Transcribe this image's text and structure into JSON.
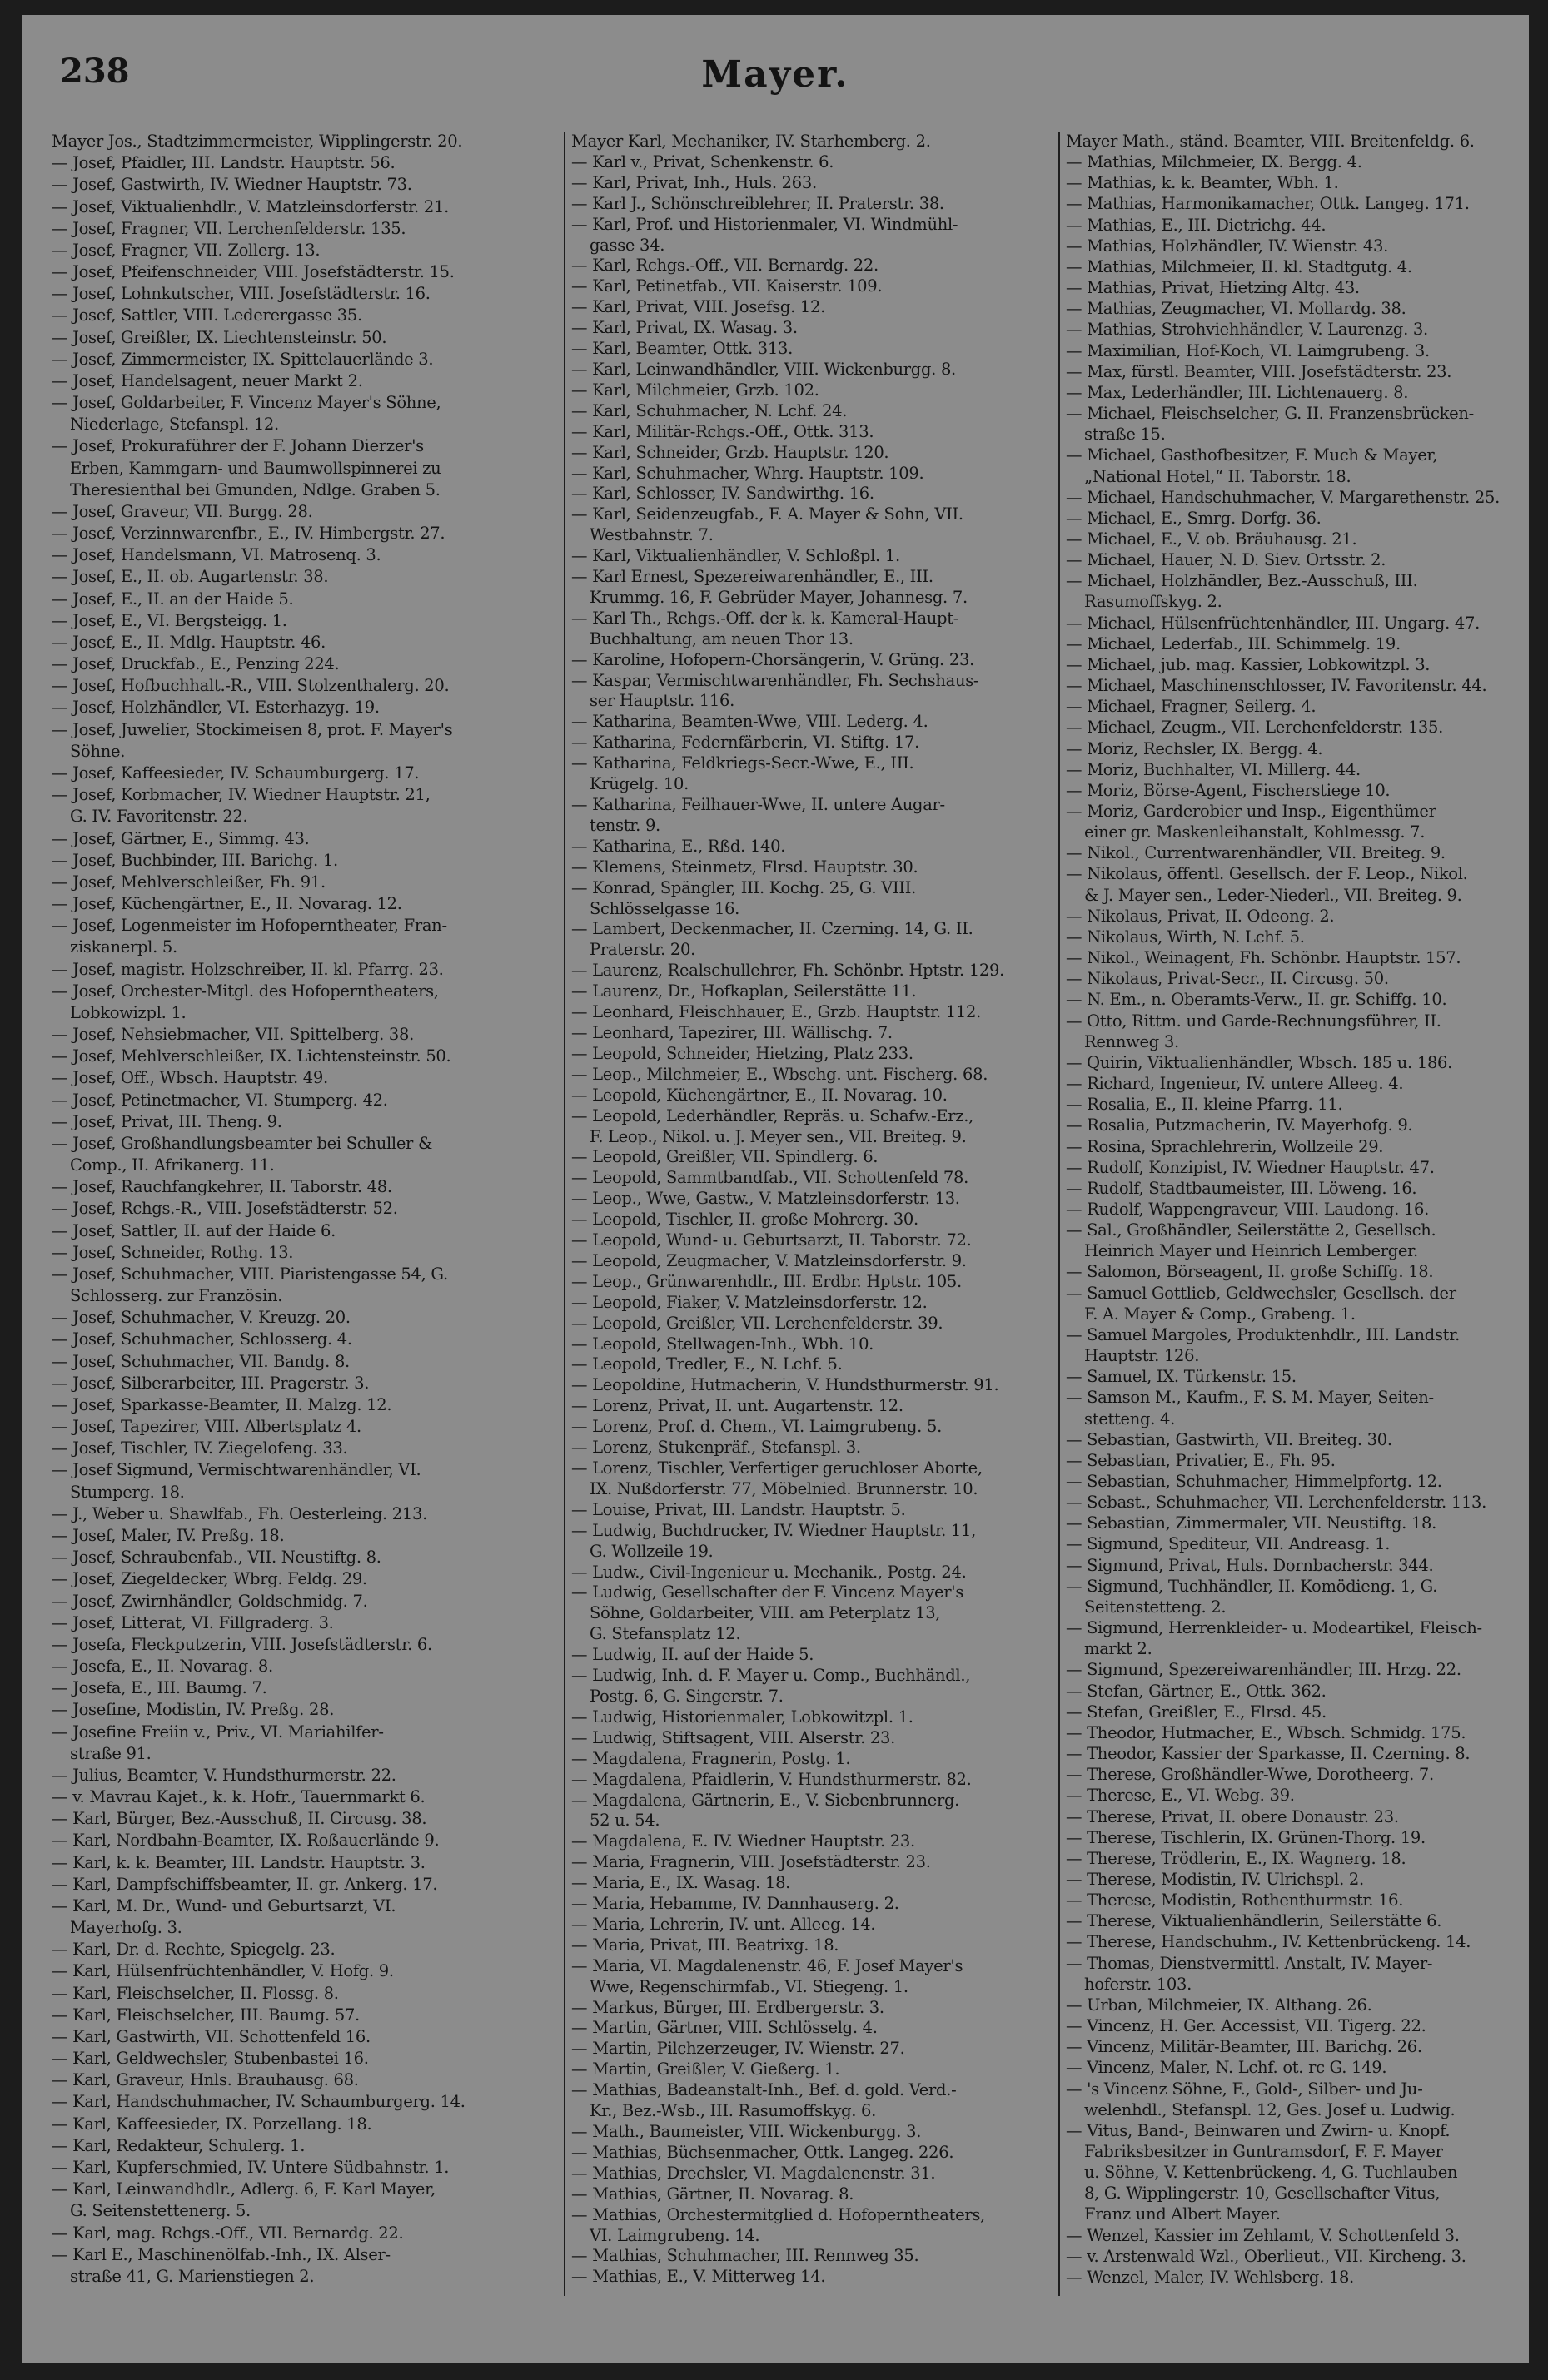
{
  "header": {
    "page_number": "238",
    "title": "Mayer."
  },
  "columns": [
    {
      "lines": [
        "Mayer Jos., Stadtzimmermeister, Wipplingerstr. 20.",
        "— Josef, Pfaidler, III. Landstr. Hauptstr. 56.",
        "— Josef, Gastwirth, IV. Wiedner Hauptstr. 73.",
        "— Josef, Viktualienhdlr., V. Matzleinsdorferstr. 21.",
        "— Josef, Fragner, VII. Lerchenfelderstr. 135.",
        "— Josef, Fragner, VII. Zollerg. 13.",
        "— Josef, Pfeifenschneider, VIII. Josefstädterstr. 15.",
        "— Josef, Lohnkutscher, VIII. Josefstädterstr. 16.",
        "— Josef, Sattler, VIII. Lederergasse 35.",
        "— Josef, Greißler, IX. Liechtensteinstr. 50.",
        "— Josef, Zimmermeister, IX. Spittelauerlände 3.",
        "— Josef, Handelsagent, neuer Markt 2.",
        "— Josef, Goldarbeiter, F. Vincenz Mayer's Söhne,",
        "Niederlage, Stefanspl. 12.",
        "— Josef, Prokuraführer der F. Johann Dierzer's",
        "Erben, Kammgarn- und Baumwollspinnerei zu",
        "Theresienthal bei Gmunden, Ndlge. Graben 5.",
        "— Josef, Graveur, VII. Burgg. 28.",
        "— Josef, Verzinnwarenfbr., E., IV. Himbergstr. 27.",
        "— Josef, Handelsmann, VI. Matrosenq. 3.",
        "— Josef, E., II. ob. Augartenstr. 38.",
        "— Josef, E., II. an der Haide 5.",
        "— Josef, E., VI. Bergsteigg. 1.",
        "— Josef, E., II. Mdlg. Hauptstr. 46.",
        "— Josef, Druckfab., E., Penzing 224.",
        "— Josef, Hofbuchhalt.-R., VIII. Stolzenthalerg. 20.",
        "— Josef, Holzhändler, VI. Esterhazyg. 19.",
        "— Josef, Juwelier, Stockimeisen 8, prot. F. Mayer's",
        "Söhne.",
        "— Josef, Kaffeesieder, IV. Schaumburgerg. 17.",
        "— Josef, Korbmacher, IV. Wiedner Hauptstr. 21,",
        "G. IV. Favoritenstr. 22.",
        "— Josef, Gärtner, E., Simmg. 43.",
        "— Josef, Buchbinder, III. Barichg. 1.",
        "— Josef, Mehlverschleißer, Fh. 91.",
        "— Josef, Küchengärtner, E., II. Novarag. 12.",
        "— Josef, Logenmeister im Hofoperntheater, Fran-",
        "ziskanerpl. 5.",
        "— Josef, magistr. Holzschreiber, II. kl. Pfarrg. 23.",
        "— Josef, Orchester-Mitgl. des Hofoperntheaters,",
        "Lobkowizpl. 1.",
        "— Josef, Nehsiebmacher, VII. Spittelberg. 38.",
        "— Josef, Mehlverschleißer, IX. Lichtensteinstr. 50.",
        "— Josef, Off., Wbsch. Hauptstr. 49.",
        "— Josef, Petinetmacher, VI. Stumperg. 42.",
        "— Josef, Privat, III. Theng. 9.",
        "— Josef, Großhandlungsbeamter bei Schuller &",
        "Comp., II. Afrikanerg. 11.",
        "— Josef, Rauchfangkehrer, II. Taborstr. 48.",
        "— Josef, Rchgs.-R., VIII. Josefstädterstr. 52.",
        "— Josef, Sattler, II. auf der Haide 6.",
        "— Josef, Schneider, Rothg. 13.",
        "— Josef, Schuhmacher, VIII. Piaristengasse 54, G.",
        "Schlosserg. zur Französin.",
        "— Josef, Schuhmacher, V. Kreuzg. 20.",
        "— Josef, Schuhmacher, Schlosserg. 4.",
        "— Josef, Schuhmacher, VII. Bandg. 8.",
        "— Josef, Silberarbeiter, III. Pragerstr. 3.",
        "— Josef, Sparkasse-Beamter, II. Malzg. 12.",
        "— Josef, Tapezirer, VIII. Albertsplatz 4.",
        "— Josef, Tischler, IV. Ziegelofeng. 33.",
        "— Josef Sigmund, Vermischtwarenhändler, VI.",
        "Stumperg. 18.",
        "— J., Weber u. Shawlfab., Fh. Oesterleing. 213.",
        "— Josef, Maler, IV. Preßg. 18.",
        "— Josef, Schraubenfab., VII. Neustiftg. 8.",
        "— Josef, Ziegeldecker, Wbrg. Feldg. 29.",
        "— Josef, Zwirnhändler, Goldschmidg. 7.",
        "— Josef, Litterat, VI. Fillgraderg. 3.",
        "— Josefa, Fleckputzerin, VIII. Josefstädterstr. 6.",
        "— Josefa, E., II. Novarag. 8.",
        "— Josefa, E., III. Baumg. 7.",
        "— Josefine, Modistin, IV. Preßg. 28.",
        "— Josefine Freiin v., Priv., VI. Mariahilfer-",
        "straße 91.",
        "— Julius, Beamter, V. Hundsthurmerstr. 22.",
        "— v. Mavrau Kajet., k. k. Hofr., Tauernmarkt 6.",
        "— Karl, Bürger, Bez.-Ausschuß, II. Circusg. 38.",
        "— Karl, Nordbahn-Beamter, IX. Roßauerlände 9.",
        "— Karl, k. k. Beamter, III. Landstr. Hauptstr. 3.",
        "— Karl, Dampfschiffsbeamter, II. gr. Ankerg. 17.",
        "— Karl, M. Dr., Wund- und Geburtsarzt, VI.",
        "Mayerhofg. 3.",
        "— Karl, Dr. d. Rechte, Spiegelg. 23.",
        "— Karl, Hülsenfrüchtenhändler, V. Hofg. 9.",
        "— Karl, Fleischselcher, II. Flossg. 8.",
        "— Karl, Fleischselcher, III. Baumg. 57.",
        "— Karl, Gastwirth, VII. Schottenfeld 16.",
        "— Karl, Geldwechsler, Stubenbastei 16.",
        "— Karl, Graveur, Hnls. Brauhausg. 68.",
        "— Karl, Handschuhmacher, IV. Schaumburgerg. 14.",
        "— Karl, Kaffeesieder, IX. Porzellang. 18.",
        "— Karl, Redakteur, Schulerg. 1.",
        "— Karl, Kupferschmied, IV. Untere Südbahnstr. 1.",
        "— Karl, Leinwandhdlr., Adlerg. 6, F. Karl Mayer,",
        "G. Seitenstettenerg. 5.",
        "— Karl, mag. Rchgs.-Off., VII. Bernardg. 22.",
        "— Karl E., Maschinenölfab.-Inh., IX. Alser-",
        "straße 41, G. Marienstiegen 2."
      ]
    },
    {
      "lines": [
        "Mayer Karl, Mechaniker, IV. Starhemberg. 2.",
        "— Karl v., Privat, Schenkenstr. 6.",
        "— Karl, Privat, Inh., Huls. 263.",
        "— Karl J., Schönschreiblehrer, II. Praterstr. 38.",
        "— Karl, Prof. und Historienmaler, VI. Windmühl-",
        "gasse 34.",
        "— Karl, Rchgs.-Off., VII. Bernardg. 22.",
        "— Karl, Petinetfab., VII. Kaiserstr. 109.",
        "— Karl, Privat, VIII. Josefsg. 12.",
        "— Karl, Privat, IX. Wasag. 3.",
        "— Karl, Beamter, Ottk. 313.",
        "— Karl, Leinwandhändler, VIII. Wickenburgg. 8.",
        "— Karl, Milchmeier, Grzb. 102.",
        "— Karl, Schuhmacher, N. Lchf. 24.",
        "— Karl, Militär-Rchgs.-Off., Ottk. 313.",
        "— Karl, Schneider, Grzb. Hauptstr. 120.",
        "— Karl, Schuhmacher, Whrg. Hauptstr. 109.",
        "— Karl, Schlosser, IV. Sandwirthg. 16.",
        "— Karl, Seidenzeugfab., F. A. Mayer & Sohn, VII.",
        "Westbahnstr. 7.",
        "— Karl, Viktualienhändler, V. Schloßpl. 1.",
        "— Karl Ernest, Spezereiwarenhändler, E., III.",
        "Krummg. 16, F. Gebrüder Mayer, Johannesg. 7.",
        "— Karl Th., Rchgs.-Off. der k. k. Kameral-Haupt-",
        "Buchhaltung, am neuen Thor 13.",
        "— Karoline, Hofopern-Chorsängerin, V. Grüng. 23.",
        "— Kaspar, Vermischtwarenhändler, Fh. Sechshaus-",
        "ser Hauptstr. 116.",
        "— Katharina, Beamten-Wwe, VIII. Lederg. 4.",
        "— Katharina, Federnfärberin, VI. Stiftg. 17.",
        "— Katharina, Feldkriegs-Secr.-Wwe, E., III.",
        "Krügelg. 10.",
        "— Katharina, Feilhauer-Wwe, II. untere Augar-",
        "tenstr. 9.",
        "— Katharina, E., Rßd. 140.",
        "— Klemens, Steinmetz, Flrsd. Hauptstr. 30.",
        "— Konrad, Spängler, III. Kochg. 25, G. VIII.",
        "Schlösselgasse 16.",
        "— Lambert, Deckenmacher, II. Czerning. 14, G. II.",
        "Praterstr. 20.",
        "— Laurenz, Realschullehrer, Fh. Schönbr. Hptstr. 129.",
        "— Laurenz, Dr., Hofkaplan, Seilerstätte 11.",
        "— Leonhard, Fleischhauer, E., Grzb. Hauptstr. 112.",
        "— Leonhard, Tapezirer, III. Wällischg. 7.",
        "— Leopold, Schneider, Hietzing, Platz 233.",
        "— Leop., Milchmeier, E., Wbschg. unt. Fischerg. 68.",
        "— Leopold, Küchengärtner, E., II. Novarag. 10.",
        "— Leopold, Lederhändler, Repräs. u. Schafw.-Erz.,",
        "F. Leop., Nikol. u. J. Meyer sen., VII. Breiteg. 9.",
        "— Leopold, Greißler, VII. Spindlerg. 6.",
        "— Leopold, Sammtbandfab., VII. Schottenfeld 78.",
        "— Leop., Wwe, Gastw., V. Matzleinsdorferstr. 13.",
        "— Leopold, Tischler, II. große Mohrerg. 30.",
        "— Leopold, Wund- u. Geburtsarzt, II. Taborstr. 72.",
        "— Leopold, Zeugmacher, V. Matzleinsdorferstr. 9.",
        "— Leop., Grünwarenhdlr., III. Erdbr. Hptstr. 105.",
        "— Leopold, Fiaker, V. Matzleinsdorferstr. 12.",
        "— Leopold, Greißler, VII. Lerchenfelderstr. 39.",
        "— Leopold, Stellwagen-Inh., Wbh. 10.",
        "— Leopold, Tredler, E., N. Lchf. 5.",
        "— Leopoldine, Hutmacherin, V. Hundsthurmerstr. 91.",
        "— Lorenz, Privat, II. unt. Augartenstr. 12.",
        "— Lorenz, Prof. d. Chem., VI. Laimgrubeng. 5.",
        "— Lorenz, Stukenpräf., Stefanspl. 3.",
        "— Lorenz, Tischler, Verfertiger geruchloser Aborte,",
        "IX. Nußdorferstr. 77, Möbelnied. Brunnerstr. 10.",
        "— Louise, Privat, III. Landstr. Hauptstr. 5.",
        "— Ludwig, Buchdrucker, IV. Wiedner Hauptstr. 11,",
        "G. Wollzeile 19.",
        "— Ludw., Civil-Ingenieur u. Mechanik., Postg. 24.",
        "— Ludwig, Gesellschafter der F. Vincenz Mayer's",
        "Söhne, Goldarbeiter, VIII. am Peterplatz 13,",
        "G. Stefansplatz 12.",
        "— Ludwig, II. auf der Haide 5.",
        "— Ludwig, Inh. d. F. Mayer u. Comp., Buchhändl.,",
        "Postg. 6, G. Singerstr. 7.",
        "— Ludwig, Historienmaler, Lobkowitzpl. 1.",
        "— Ludwig, Stiftsagent, VIII. Alserstr. 23.",
        "— Magdalena, Fragnerin, Postg. 1.",
        "— Magdalena, Pfaidlerin, V. Hundsthurmerstr. 82.",
        "— Magdalena, Gärtnerin, E., V. Siebenbrunnerg.",
        "52 u. 54.",
        "— Magdalena, E. IV. Wiedner Hauptstr. 23.",
        "— Maria, Fragnerin, VIII. Josefstädterstr. 23.",
        "— Maria, E., IX. Wasag. 18.",
        "— Maria, Hebamme, IV. Dannhauserg. 2.",
        "— Maria, Lehrerin, IV. unt. Alleeg. 14.",
        "— Maria, Privat, III. Beatrixg. 18.",
        "— Maria, VI. Magdalenenstr. 46, F. Josef Mayer's",
        "Wwe, Regenschirmfab., VI. Stiegeng. 1.",
        "— Markus, Bürger, III. Erdbergerstr. 3.",
        "— Martin, Gärtner, VIII. Schlösselg. 4.",
        "— Martin, Pilchzerzeuger, IV. Wienstr. 27.",
        "— Martin, Greißler, V. Gießerg. 1.",
        "— Mathias, Badeanstalt-Inh., Bef. d. gold. Verd.-",
        "Kr., Bez.-Wsb., III. Rasumoffskyg. 6.",
        "— Math., Baumeister, VIII. Wickenburgg. 3.",
        "— Mathias, Büchsenmacher, Ottk. Langeg. 226.",
        "— Mathias, Drechsler, VI. Magdalenenstr. 31.",
        "— Mathias, Gärtner, II. Novarag. 8.",
        "— Mathias, Orchestermitglied d. Hofoperntheaters,",
        "VI. Laimgrubeng. 14.",
        "— Mathias, Schuhmacher, III. Rennweg 35.",
        "— Mathias, E., V. Mitterweg 14."
      ]
    },
    {
      "lines": [
        "Mayer Math., ständ. Beamter, VIII. Breitenfeldg. 6.",
        "— Mathias, Milchmeier, IX. Bergg. 4.",
        "— Mathias, k. k. Beamter, Wbh. 1.",
        "— Mathias, Harmonikamacher, Ottk. Langeg. 171.",
        "— Mathias, E., III. Dietrichg. 44.",
        "— Mathias, Holzhändler, IV. Wienstr. 43.",
        "— Mathias, Milchmeier, II. kl. Stadtgutg. 4.",
        "— Mathias, Privat, Hietzing Altg. 43.",
        "— Mathias, Zeugmacher, VI. Mollardg. 38.",
        "— Mathias, Strohviehhändler, V. Laurenzg. 3.",
        "— Maximilian, Hof-Koch, VI. Laimgrubeng. 3.",
        "— Max, fürstl. Beamter, VIII. Josefstädterstr. 23.",
        "— Max, Lederhändler, III. Lichtenauerg. 8.",
        "— Michael, Fleischselcher, G. II. Franzensbrücken-",
        "straße 15.",
        "— Michael, Gasthofbesitzer, F. Much & Mayer,",
        "„National Hotel,“ II. Taborstr. 18.",
        "— Michael, Handschuhmacher, V. Margarethenstr. 25.",
        "— Michael, E., Smrg. Dorfg. 36.",
        "— Michael, E., V. ob. Bräuhausg. 21.",
        "— Michael, Hauer, N. D. Siev. Ortsstr. 2.",
        "— Michael, Holzhändler, Bez.-Ausschuß, III.",
        "Rasumoffskyg. 2.",
        "— Michael, Hülsenfrüchtenhändler, III. Ungarg. 47.",
        "— Michael, Lederfab., III. Schimmelg. 19.",
        "— Michael, jub. mag. Kassier, Lobkowitzpl. 3.",
        "— Michael, Maschinenschlosser, IV. Favoritenstr. 44.",
        "— Michael, Fragner, Seilerg. 4.",
        "— Michael, Zeugm., VII. Lerchenfelderstr. 135.",
        "— Moriz, Rechsler, IX. Bergg. 4.",
        "— Moriz, Buchhalter, VI. Millerg. 44.",
        "— Moriz, Börse-Agent, Fischerstiege 10.",
        "— Moriz, Garderobier und Insp., Eigenthümer",
        "einer gr. Maskenleihanstalt, Kohlmessg. 7.",
        "— Nikol., Currentwarenhändler, VII. Breiteg. 9.",
        "— Nikolaus, öffentl. Gesellsch. der F. Leop., Nikol.",
        "& J. Mayer sen., Leder-Niederl., VII. Breiteg. 9.",
        "— Nikolaus, Privat, II. Odeong. 2.",
        "— Nikolaus, Wirth, N. Lchf. 5.",
        "— Nikol., Weinagent, Fh. Schönbr. Hauptstr. 157.",
        "— Nikolaus, Privat-Secr., II. Circusg. 50.",
        "— N. Em., n. Oberamts-Verw., II. gr. Schiffg. 10.",
        "— Otto, Rittm. und Garde-Rechnungsführer, II.",
        "Rennweg 3.",
        "— Quirin, Viktualienhändler, Wbsch. 185 u. 186.",
        "— Richard, Ingenieur, IV. untere Alleeg. 4.",
        "— Rosalia, E., II. kleine Pfarrg. 11.",
        "— Rosalia, Putzmacherin, IV. Mayerhofg. 9.",
        "— Rosina, Sprachlehrerin, Wollzeile 29.",
        "— Rudolf, Konzipist, IV. Wiedner Hauptstr. 47.",
        "— Rudolf, Stadtbaumeister, III. Löweng. 16.",
        "— Rudolf, Wappengraveur, VIII. Laudong. 16.",
        "— Sal., Großhändler, Seilerstätte 2, Gesellsch.",
        "Heinrich Mayer und Heinrich Lemberger.",
        "— Salomon, Börseagent, II. große Schiffg. 18.",
        "— Samuel Gottlieb, Geldwechsler, Gesellsch. der",
        "F. A. Mayer & Comp., Grabeng. 1.",
        "— Samuel Margoles, Produktenhdlr., III. Landstr.",
        "Hauptstr. 126.",
        "— Samuel, IX. Türkenstr. 15.",
        "— Samson M., Kaufm., F. S. M. Mayer, Seiten-",
        "stetteng. 4.",
        "— Sebastian, Gastwirth, VII. Breiteg. 30.",
        "— Sebastian, Privatier, E., Fh. 95.",
        "— Sebastian, Schuhmacher, Himmelpfortg. 12.",
        "— Sebast., Schuhmacher, VII. Lerchenfelderstr. 113.",
        "— Sebastian, Zimmermaler, VII. Neustiftg. 18.",
        "— Sigmund, Spediteur, VII. Andreasg. 1.",
        "— Sigmund, Privat, Huls. Dornbacherstr. 344.",
        "— Sigmund, Tuchhändler, II. Komödieng. 1, G.",
        "Seitenstetteng. 2.",
        "— Sigmund, Herrenkleider- u. Modeartikel, Fleisch-",
        "markt 2.",
        "— Sigmund, Spezereiwarenhändler, III. Hrzg. 22.",
        "— Stefan, Gärtner, E., Ottk. 362.",
        "— Stefan, Greißler, E., Flrsd. 45.",
        "— Theodor, Hutmacher, E., Wbsch. Schmidg. 175.",
        "— Theodor, Kassier der Sparkasse, II. Czerning. 8.",
        "— Therese, Großhändler-Wwe, Dorotheerg. 7.",
        "— Therese, E., VI. Webg. 39.",
        "— Therese, Privat, II. obere Donaustr. 23.",
        "— Therese, Tischlerin, IX. Grünen-Thorg. 19.",
        "— Therese, Trödlerin, E., IX. Wagnerg. 18.",
        "— Therese, Modistin, IV. Ulrichspl. 2.",
        "— Therese, Modistin, Rothenthurmstr. 16.",
        "— Therese, Viktualienhändlerin, Seilerstätte 6.",
        "— Therese, Handschuhm., IV. Kettenbrückeng. 14.",
        "— Thomas, Dienstvermittl. Anstalt, IV. Mayer-",
        "hoferstr. 103.",
        "— Urban, Milchmeier, IX. Althang. 26.",
        "— Vincenz, H. Ger. Accessist, VII. Tigerg. 22.",
        "— Vincenz, Militär-Beamter, III. Barichg. 26.",
        "— Vincenz, Maler, N. Lchf. ot. rc G. 149.",
        "— 's Vincenz Söhne, F., Gold-, Silber- und Ju-",
        "welenhdl., Stefanspl. 12, Ges. Josef u. Ludwig.",
        "— Vitus, Band-, Beinwaren und Zwirn- u. Knopf.",
        "Fabriksbesitzer in Guntramsdorf, F. F. Mayer",
        "u. Söhne, V. Kettenbrückeng. 4, G. Tuchlauben",
        "8, G. Wipplingerstr. 10, Gesellschafter Vitus,",
        "Franz und Albert Mayer.",
        "— Wenzel, Kassier im Zehlamt, V. Schottenfeld 3.",
        "— v. Arstenwald Wzl., Oberlieut., VII. Kircheng. 3.",
        "— Wenzel, Maler, IV. Wehlsberg. 18."
      ]
    }
  ]
}
